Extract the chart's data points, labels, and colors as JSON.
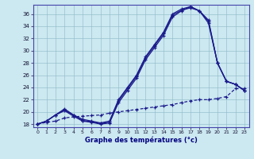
{
  "xlabel": "Graphe des températures (°c)",
  "xlim": [
    -0.5,
    23.5
  ],
  "ylim": [
    17.5,
    37.5
  ],
  "yticks": [
    18,
    20,
    22,
    24,
    26,
    28,
    30,
    32,
    34,
    36
  ],
  "xticks": [
    0,
    1,
    2,
    3,
    4,
    5,
    6,
    7,
    8,
    9,
    10,
    11,
    12,
    13,
    14,
    15,
    16,
    17,
    18,
    19,
    20,
    21,
    22,
    23
  ],
  "bg_color": "#cce8f0",
  "line_color": "#1a1a8c",
  "line1_x": [
    0,
    1,
    2,
    3,
    4,
    5,
    6,
    7,
    8,
    9,
    10,
    11,
    12,
    13,
    14,
    15,
    16,
    17,
    18,
    19,
    20,
    21,
    22,
    23
  ],
  "line1_y": [
    18,
    18.5,
    19.5,
    20.2,
    19.3,
    18.5,
    18.3,
    18.0,
    18.2,
    21.5,
    23.5,
    25.5,
    28.5,
    30.5,
    32.5,
    35.5,
    36.5,
    37.2,
    36.5,
    35.0,
    28.0,
    25.0,
    24.5,
    23.5
  ],
  "line2_x": [
    0,
    1,
    2,
    3,
    4,
    5,
    6,
    7,
    8,
    9,
    10,
    11,
    12,
    13,
    14,
    15,
    16,
    17,
    18,
    19,
    20,
    21,
    22,
    23
  ],
  "line2_y": [
    18,
    18.5,
    19.5,
    20.5,
    19.5,
    18.8,
    18.5,
    18.2,
    18.5,
    22.0,
    24.0,
    26.0,
    29.0,
    31.0,
    33.0,
    36.0,
    36.8,
    37.2,
    36.5,
    34.5,
    28.0,
    25.0,
    24.5,
    23.5
  ],
  "line3_x": [
    0,
    1,
    2,
    3,
    4,
    5,
    6,
    7,
    8,
    9,
    10,
    11,
    12,
    13,
    14,
    15,
    16,
    17,
    18,
    19,
    20,
    21,
    22,
    23
  ],
  "line3_y": [
    18,
    18.5,
    19.5,
    20.3,
    19.5,
    18.6,
    18.4,
    18.1,
    18.3,
    21.8,
    23.8,
    25.8,
    28.8,
    30.8,
    32.8,
    35.8,
    36.6,
    37.0,
    36.5,
    34.8,
    28.0,
    25.0,
    24.5,
    23.5
  ],
  "line4_x": [
    0,
    1,
    2,
    3,
    4,
    5,
    6,
    7,
    8,
    9,
    10,
    11,
    12,
    13,
    14,
    15,
    16,
    17,
    18,
    19,
    20,
    21,
    22,
    23
  ],
  "line4_y": [
    18,
    18.3,
    18.5,
    19.0,
    19.2,
    19.3,
    19.4,
    19.5,
    19.8,
    20.0,
    20.2,
    20.4,
    20.6,
    20.8,
    21.0,
    21.2,
    21.5,
    21.8,
    22.0,
    22.0,
    22.2,
    22.5,
    23.8,
    23.8
  ]
}
